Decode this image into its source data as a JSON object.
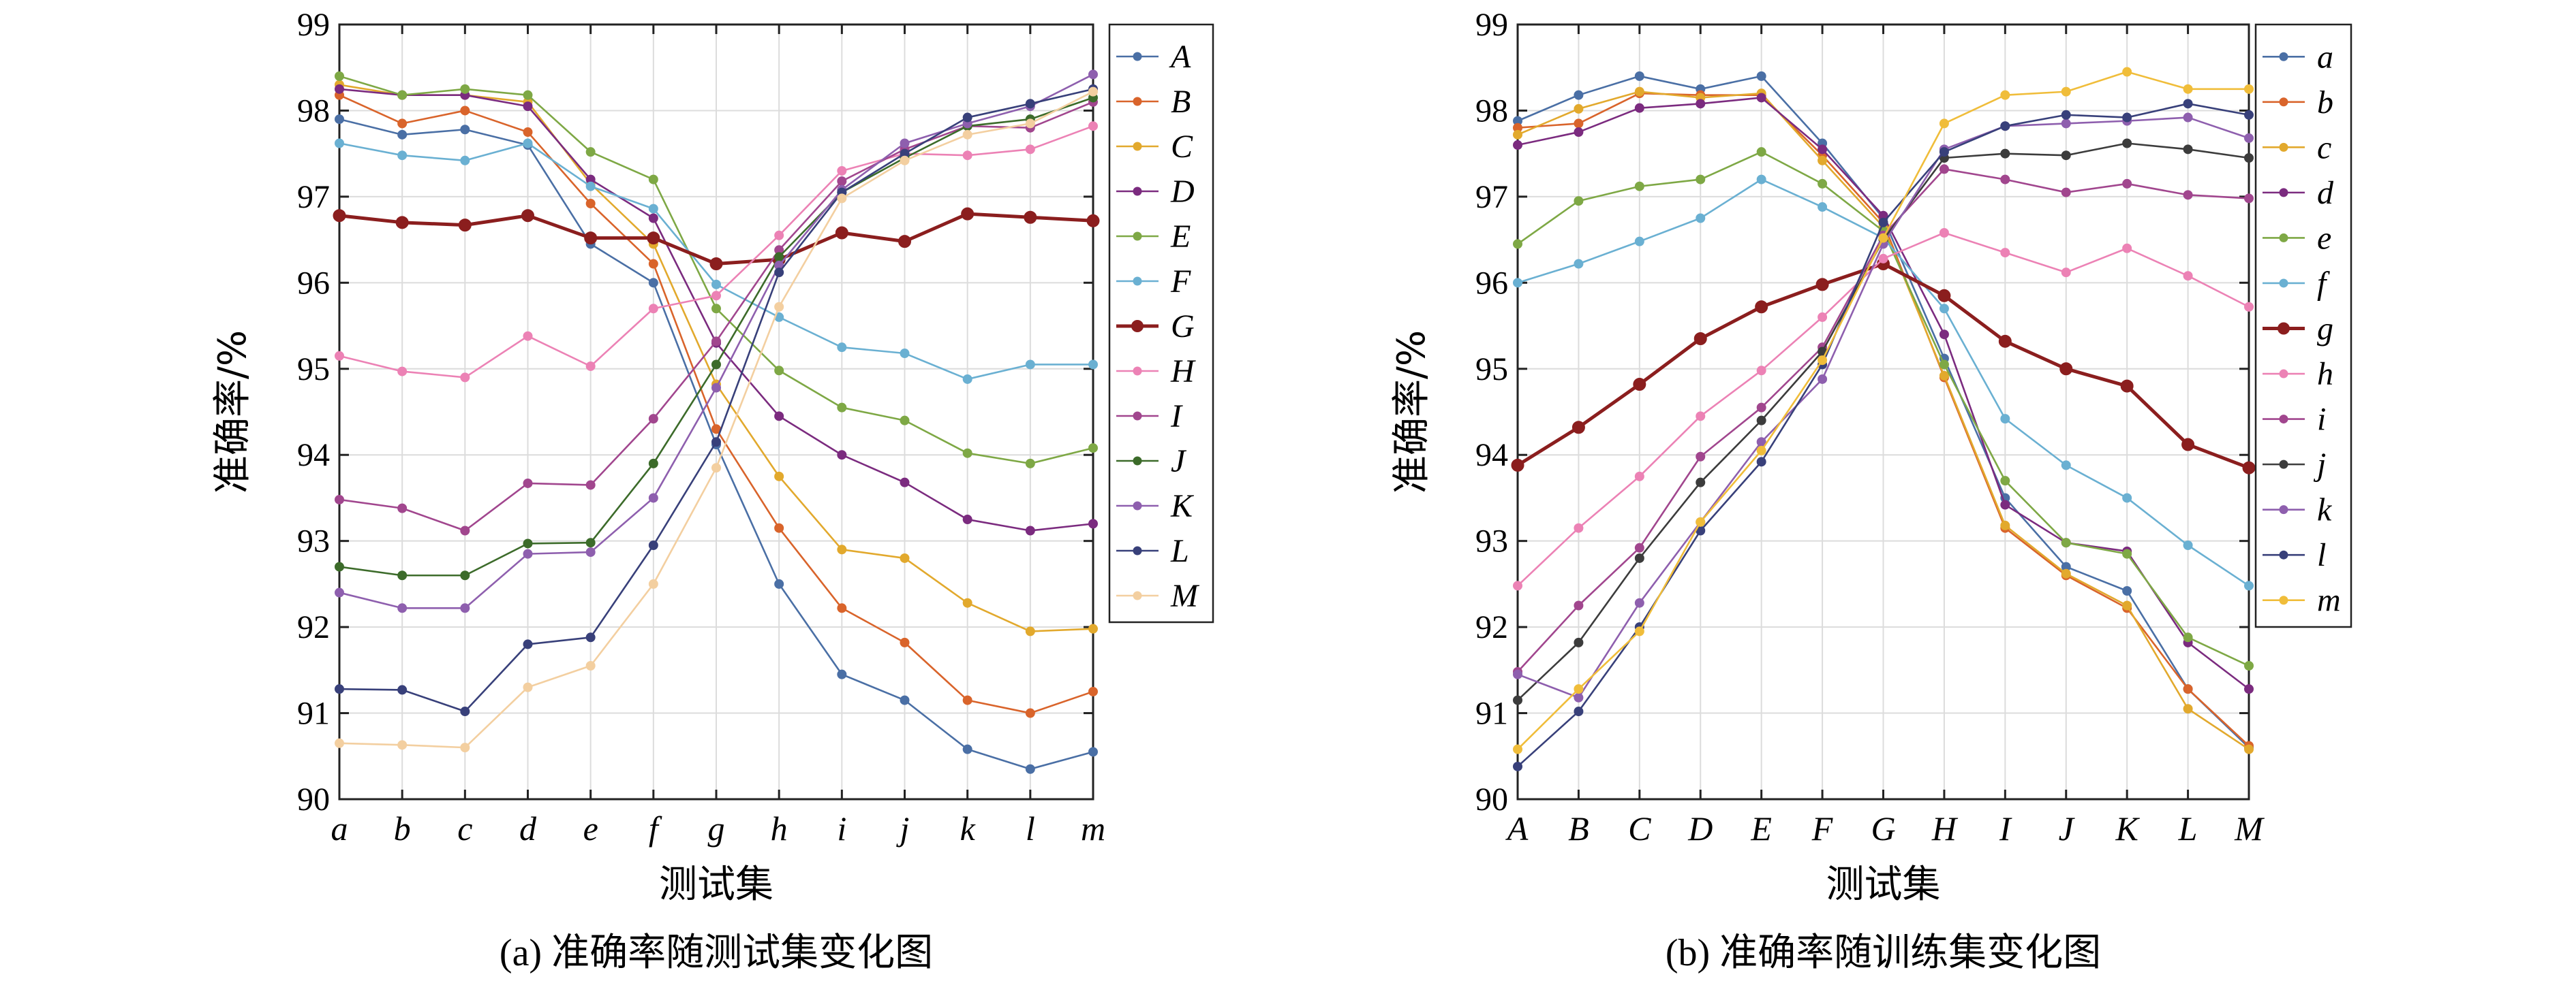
{
  "chart_data": [
    {
      "type": "line",
      "caption": "(a) 准确率随测试集变化图",
      "xlabel": "测试集",
      "ylabel": "准确率/%",
      "ylim": [
        90,
        99
      ],
      "yticks": [
        "90",
        "91",
        "92",
        "93",
        "94",
        "95",
        "96",
        "97",
        "98",
        "99"
      ],
      "categories": [
        "a",
        "b",
        "c",
        "d",
        "e",
        "f",
        "g",
        "h",
        "i",
        "j",
        "k",
        "l",
        "m"
      ],
      "grid": true,
      "legend_position": "right",
      "highlight_series": "G",
      "series": [
        {
          "name": "A",
          "color": "#4a6fa5",
          "values": [
            97.9,
            97.72,
            97.78,
            97.6,
            96.45,
            96.0,
            94.12,
            92.5,
            91.45,
            91.15,
            90.58,
            90.35,
            90.55
          ]
        },
        {
          "name": "B",
          "color": "#d9642b",
          "values": [
            98.18,
            97.85,
            98.0,
            97.75,
            96.92,
            96.22,
            94.3,
            93.15,
            92.22,
            91.82,
            91.15,
            91.0,
            91.25
          ]
        },
        {
          "name": "C",
          "color": "#e2a92d",
          "values": [
            98.3,
            98.18,
            98.18,
            98.1,
            97.15,
            96.45,
            94.82,
            93.75,
            92.9,
            92.8,
            92.28,
            91.95,
            91.98
          ]
        },
        {
          "name": "D",
          "color": "#7b2b7f",
          "values": [
            98.25,
            98.18,
            98.18,
            98.05,
            97.2,
            96.75,
            95.3,
            94.45,
            94.0,
            93.68,
            93.25,
            93.12,
            93.2
          ]
        },
        {
          "name": "E",
          "color": "#7ea845",
          "values": [
            98.4,
            98.18,
            98.25,
            98.18,
            97.52,
            97.2,
            95.7,
            94.98,
            94.55,
            94.4,
            94.02,
            93.9,
            94.08
          ]
        },
        {
          "name": "F",
          "color": "#6ab0d2",
          "values": [
            97.62,
            97.48,
            97.42,
            97.62,
            97.12,
            96.86,
            95.98,
            95.6,
            95.25,
            95.18,
            94.88,
            95.05,
            95.05
          ]
        },
        {
          "name": "G",
          "color": "#8b1e1e",
          "values": [
            96.78,
            96.7,
            96.67,
            96.78,
            96.52,
            96.52,
            96.22,
            96.27,
            96.58,
            96.48,
            96.8,
            96.76,
            96.72
          ]
        },
        {
          "name": "H",
          "color": "#ec82b5",
          "values": [
            95.15,
            94.97,
            94.9,
            95.38,
            95.03,
            95.7,
            95.85,
            96.55,
            97.3,
            97.5,
            97.48,
            97.55,
            97.82
          ]
        },
        {
          "name": "I",
          "color": "#a1468e",
          "values": [
            93.48,
            93.38,
            93.12,
            93.67,
            93.65,
            94.42,
            95.32,
            96.38,
            97.18,
            97.55,
            97.82,
            97.8,
            98.1
          ]
        },
        {
          "name": "J",
          "color": "#3c6b2a",
          "values": [
            92.7,
            92.6,
            92.6,
            92.97,
            92.98,
            93.9,
            95.05,
            96.3,
            97.05,
            97.45,
            97.82,
            97.9,
            98.15
          ]
        },
        {
          "name": "K",
          "color": "#8e5fae",
          "values": [
            92.4,
            92.22,
            92.22,
            92.85,
            92.87,
            93.5,
            94.78,
            96.2,
            97.08,
            97.62,
            97.85,
            98.05,
            98.42
          ]
        },
        {
          "name": "L",
          "color": "#38407a",
          "values": [
            91.28,
            91.27,
            91.02,
            91.8,
            91.88,
            92.95,
            94.15,
            96.12,
            97.05,
            97.5,
            97.92,
            98.08,
            98.25
          ]
        },
        {
          "name": "M",
          "color": "#f3cfa0",
          "values": [
            90.65,
            90.63,
            90.6,
            91.3,
            91.55,
            92.5,
            93.85,
            95.72,
            96.98,
            97.42,
            97.72,
            97.85,
            98.22
          ]
        }
      ]
    },
    {
      "type": "line",
      "caption": "(b) 准确率随训练集变化图",
      "xlabel": "测试集",
      "ylabel": "准确率/%",
      "ylim": [
        90,
        99
      ],
      "yticks": [
        "90",
        "91",
        "92",
        "93",
        "94",
        "95",
        "96",
        "97",
        "98",
        "99"
      ],
      "categories": [
        "A",
        "B",
        "C",
        "D",
        "E",
        "F",
        "G",
        "H",
        "I",
        "J",
        "K",
        "L",
        "M"
      ],
      "grid": true,
      "legend_position": "right",
      "highlight_series": "g",
      "series": [
        {
          "name": "a",
          "color": "#4a6fa5",
          "values": [
            97.88,
            98.18,
            98.4,
            98.25,
            98.4,
            97.62,
            96.75,
            95.12,
            93.5,
            92.7,
            92.42,
            91.28,
            90.6
          ]
        },
        {
          "name": "b",
          "color": "#d9642b",
          "values": [
            97.8,
            97.85,
            98.2,
            98.18,
            98.18,
            97.48,
            96.7,
            94.9,
            93.15,
            92.6,
            92.22,
            91.28,
            90.62
          ]
        },
        {
          "name": "c",
          "color": "#e2a92d",
          "values": [
            97.72,
            98.02,
            98.22,
            98.15,
            98.2,
            97.42,
            96.65,
            94.92,
            93.18,
            92.62,
            92.25,
            91.05,
            90.58
          ]
        },
        {
          "name": "d",
          "color": "#7b2b7f",
          "values": [
            97.6,
            97.75,
            98.03,
            98.08,
            98.15,
            97.55,
            96.78,
            95.4,
            93.42,
            92.98,
            92.88,
            91.82,
            91.28
          ]
        },
        {
          "name": "e",
          "color": "#7ea845",
          "values": [
            96.45,
            96.95,
            97.12,
            97.2,
            97.52,
            97.15,
            96.6,
            95.05,
            93.7,
            92.98,
            92.85,
            91.88,
            91.55
          ]
        },
        {
          "name": "f",
          "color": "#6ab0d2",
          "values": [
            96.0,
            96.22,
            96.48,
            96.75,
            97.2,
            96.88,
            96.52,
            95.7,
            94.42,
            93.88,
            93.5,
            92.95,
            92.48
          ]
        },
        {
          "name": "g",
          "color": "#8b1e1e",
          "values": [
            93.88,
            94.32,
            94.82,
            95.35,
            95.72,
            95.98,
            96.22,
            95.85,
            95.32,
            95.0,
            94.8,
            94.12,
            93.85
          ]
        },
        {
          "name": "h",
          "color": "#ec82b5",
          "values": [
            92.48,
            93.15,
            93.75,
            94.45,
            94.98,
            95.6,
            96.28,
            96.58,
            96.35,
            96.12,
            96.4,
            96.08,
            95.72
          ]
        },
        {
          "name": "i",
          "color": "#a1468e",
          "values": [
            91.48,
            92.25,
            92.92,
            93.98,
            94.55,
            95.25,
            96.55,
            97.32,
            97.2,
            97.05,
            97.15,
            97.02,
            96.98
          ]
        },
        {
          "name": "j",
          "color": "#3c3c3c",
          "values": [
            91.15,
            91.82,
            92.8,
            93.68,
            94.4,
            95.2,
            96.5,
            97.45,
            97.5,
            97.48,
            97.62,
            97.55,
            97.45
          ]
        },
        {
          "name": "k",
          "color": "#8e5fae",
          "values": [
            91.45,
            91.18,
            92.28,
            93.22,
            94.15,
            94.88,
            96.45,
            97.55,
            97.82,
            97.85,
            97.88,
            97.92,
            97.68
          ]
        },
        {
          "name": "l",
          "color": "#38407a",
          "values": [
            90.38,
            91.02,
            92.0,
            93.12,
            93.92,
            95.05,
            96.7,
            97.52,
            97.82,
            97.95,
            97.92,
            98.08,
            97.95
          ]
        },
        {
          "name": "m",
          "color": "#f0bd3a",
          "values": [
            90.58,
            91.28,
            91.95,
            93.22,
            94.05,
            95.1,
            96.52,
            97.85,
            98.18,
            98.22,
            98.45,
            98.25,
            98.25
          ]
        }
      ]
    }
  ]
}
